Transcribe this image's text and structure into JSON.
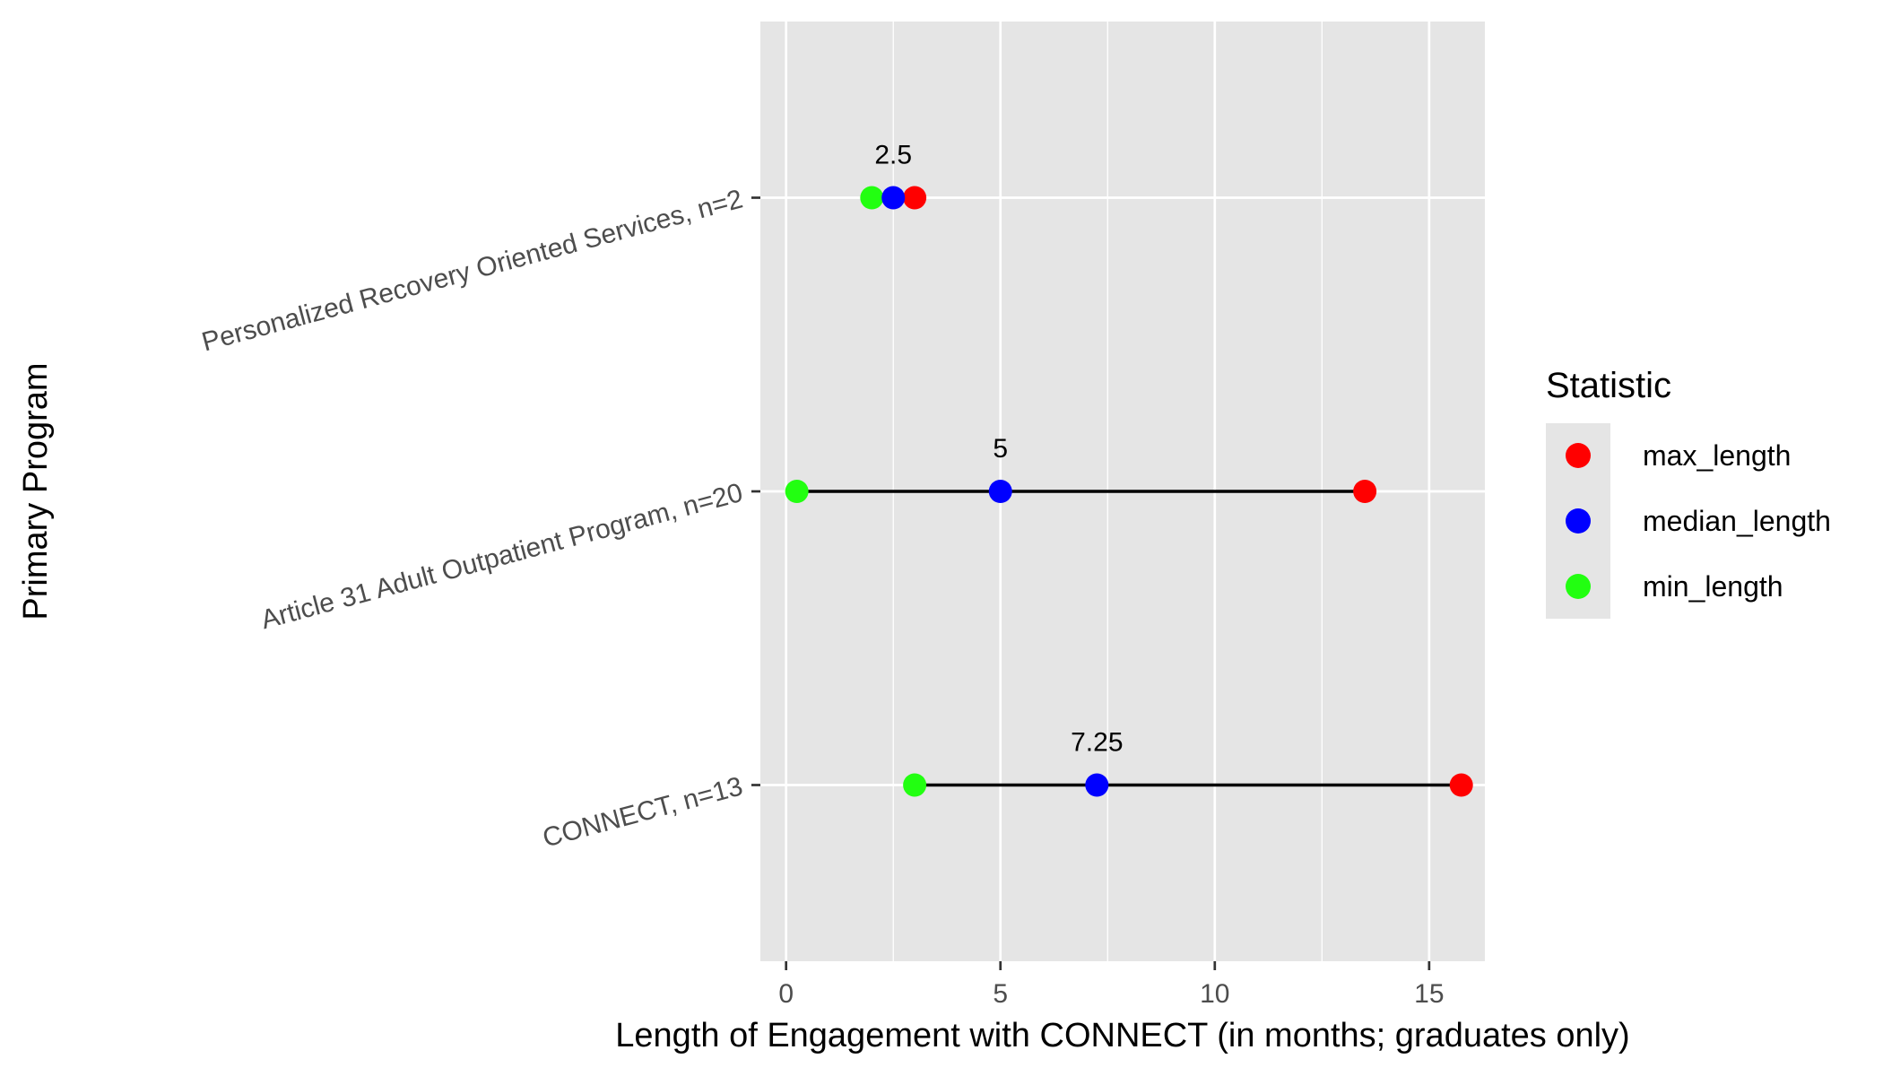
{
  "chart_data": {
    "type": "dot-range",
    "title": "",
    "xlabel": "Length of Engagement with CONNECT (in months; graduates only)",
    "ylabel": "Primary Program",
    "xlim": [
      -0.6,
      16.3
    ],
    "x_ticks": [
      0,
      5,
      10,
      15
    ],
    "x_tick_labels": [
      "0",
      "5",
      "10",
      "15"
    ],
    "grid": true,
    "categories": [
      "CONNECT, n=13",
      "Article 31 Adult Outpatient Program, n=20",
      "Personalized Recovery Oriented Services, n=2"
    ],
    "series": [
      {
        "name": "max_length",
        "color": "#ff0000",
        "values": [
          15.75,
          13.5,
          3.0
        ]
      },
      {
        "name": "median_length",
        "color": "#0000ff",
        "values": [
          7.25,
          5.0,
          2.5
        ]
      },
      {
        "name": "min_length",
        "color": "#22ff11",
        "values": [
          3.0,
          0.25,
          2.0
        ]
      }
    ],
    "annotations": [
      "7.25",
      "5",
      "2.5"
    ],
    "legend": {
      "title": "Statistic",
      "position": "right"
    }
  }
}
